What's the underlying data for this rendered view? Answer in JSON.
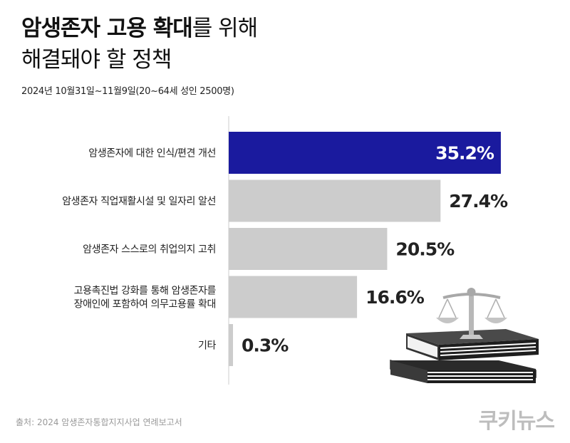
{
  "title_line1_bold": "암생존자 고용 확대",
  "title_line1_regular": "를 위해",
  "title_line2": "해결돼야 할 정책",
  "subtitle": "2024년 10월31일~11월9일(20~64세 성인 2500명)",
  "source": "출처: 2024 암생존자통합지지사업 연례보고서",
  "logo": "쿠키뉴스",
  "colors": {
    "highlight": "#1a1a9e",
    "bar": "#cccccc",
    "axis": "#cccccc",
    "label": "#222222"
  },
  "chart_data": {
    "type": "bar",
    "orientation": "horizontal",
    "categories": [
      [
        "암생존자에 대한 인식/편견 개선"
      ],
      [
        "암생존자 직업재활시설 및 일자리 알선"
      ],
      [
        "암생존자 스스로의 취업의지 고취"
      ],
      [
        "고용촉진법 강화를 통해 암생존자를",
        "장애인에 포함하여 의무고용률 확대"
      ],
      [
        "기타"
      ]
    ],
    "values": [
      35.2,
      27.4,
      20.5,
      16.6,
      0.3
    ],
    "value_labels": [
      "35.2%",
      "27.4%",
      "20.5%",
      "16.6%",
      "0.3%"
    ],
    "xlim": [
      0,
      40
    ],
    "highlight_index": 0
  }
}
